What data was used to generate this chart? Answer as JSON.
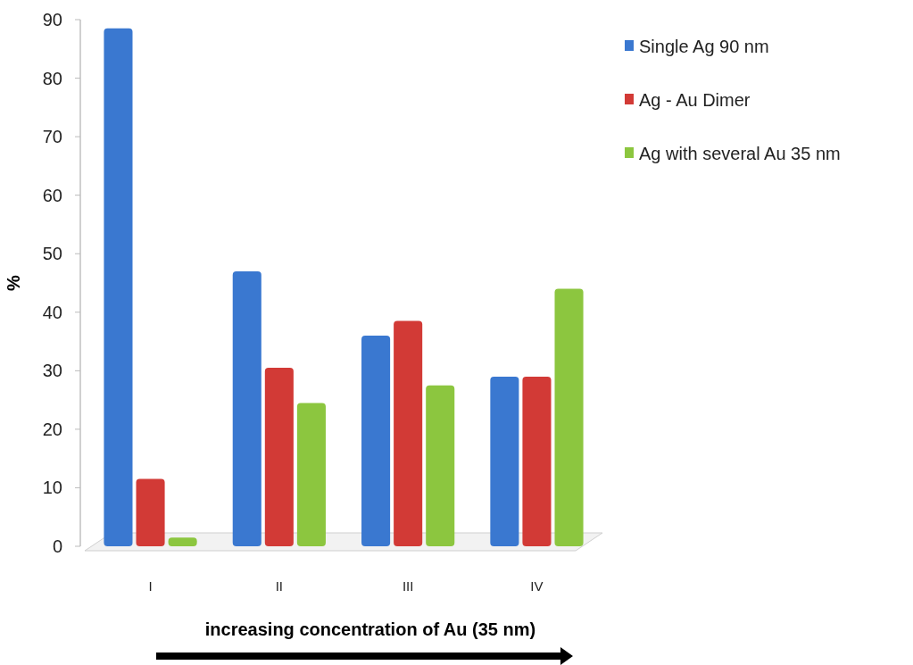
{
  "chart_data": {
    "type": "bar",
    "xlabel": "increasing concentration of Au (35 nm)",
    "ylabel": "%",
    "categories": [
      "I",
      "II",
      "III",
      "IV"
    ],
    "series": [
      {
        "name": "Single Ag 90 nm",
        "color": "#3a78d0",
        "values": [
          88.5,
          47,
          36,
          29
        ]
      },
      {
        "name": "Ag - Au Dimer",
        "color": "#d23a36",
        "values": [
          11.5,
          30.5,
          38.5,
          29
        ]
      },
      {
        "name": "Ag with several Au 35 nm",
        "color": "#8cc63f",
        "values": [
          1.5,
          24.5,
          27.5,
          44
        ]
      }
    ],
    "ylim": [
      0,
      90
    ],
    "yticks": [
      0,
      10,
      20,
      30,
      40,
      50,
      60,
      70,
      80,
      90
    ],
    "grid": false,
    "legend": "right"
  }
}
